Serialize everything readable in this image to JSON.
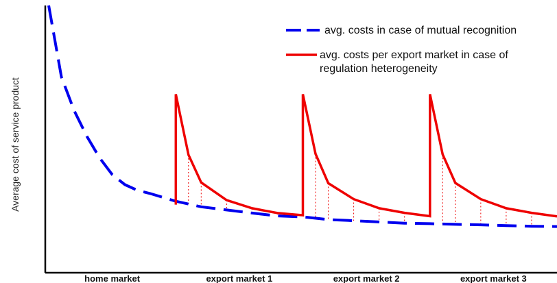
{
  "chart_data": {
    "type": "line",
    "title": "",
    "ylabel": "Average cost of service product",
    "xlabel": "",
    "categories": [
      "home market",
      "export market 1",
      "export market 2",
      "export market 3"
    ],
    "x_range": [
      0,
      4
    ],
    "ylim": [
      0,
      100
    ],
    "grid": false,
    "legend_position": "top-right",
    "series": [
      {
        "name": "avg. costs in case of  mutual recognition",
        "color": "#0000ee",
        "style": "dashed",
        "x": [
          0.0,
          0.1,
          0.2,
          0.3,
          0.4,
          0.5,
          0.6,
          0.7,
          0.8,
          1.0,
          1.2,
          1.4,
          1.6,
          1.8,
          2.0,
          2.2,
          2.4,
          2.6,
          2.8,
          3.0,
          3.2,
          3.4,
          3.6,
          3.8,
          4.0
        ],
        "y": [
          100.0,
          70.3,
          56.3,
          45.6,
          36.7,
          29.7,
          25.5,
          23.1,
          21.8,
          18.6,
          16.3,
          15.0,
          13.7,
          12.5,
          12.1,
          11.0,
          10.5,
          10.0,
          9.5,
          9.3,
          9.0,
          8.8,
          8.5,
          8.2,
          8.1
        ]
      },
      {
        "name": "avg. costs per export market in case of regulation heterogeneity",
        "color": "#ee0000",
        "style": "solid",
        "x": [
          1.0,
          1.0,
          1.1,
          1.2,
          1.4,
          1.6,
          1.8,
          2.0,
          2.0,
          2.0,
          2.1,
          2.2,
          2.4,
          2.6,
          2.8,
          3.0,
          3.0,
          3.0,
          3.1,
          3.2,
          3.4,
          3.6,
          3.8,
          4.0
        ],
        "y": [
          17.2,
          63.1,
          37.9,
          26.4,
          19.1,
          15.7,
          13.7,
          12.8,
          12.8,
          63.1,
          38.3,
          26.1,
          19.5,
          15.7,
          13.8,
          12.4,
          12.4,
          63.1,
          38.1,
          26.2,
          19.5,
          15.7,
          13.8,
          12.3
        ]
      }
    ],
    "drop_lines": true
  },
  "legend": {
    "item1": "avg. costs in case of  mutual recognition",
    "item2_line1": "avg. costs per export market in case of",
    "item2_line2": "regulation heterogeneity"
  }
}
